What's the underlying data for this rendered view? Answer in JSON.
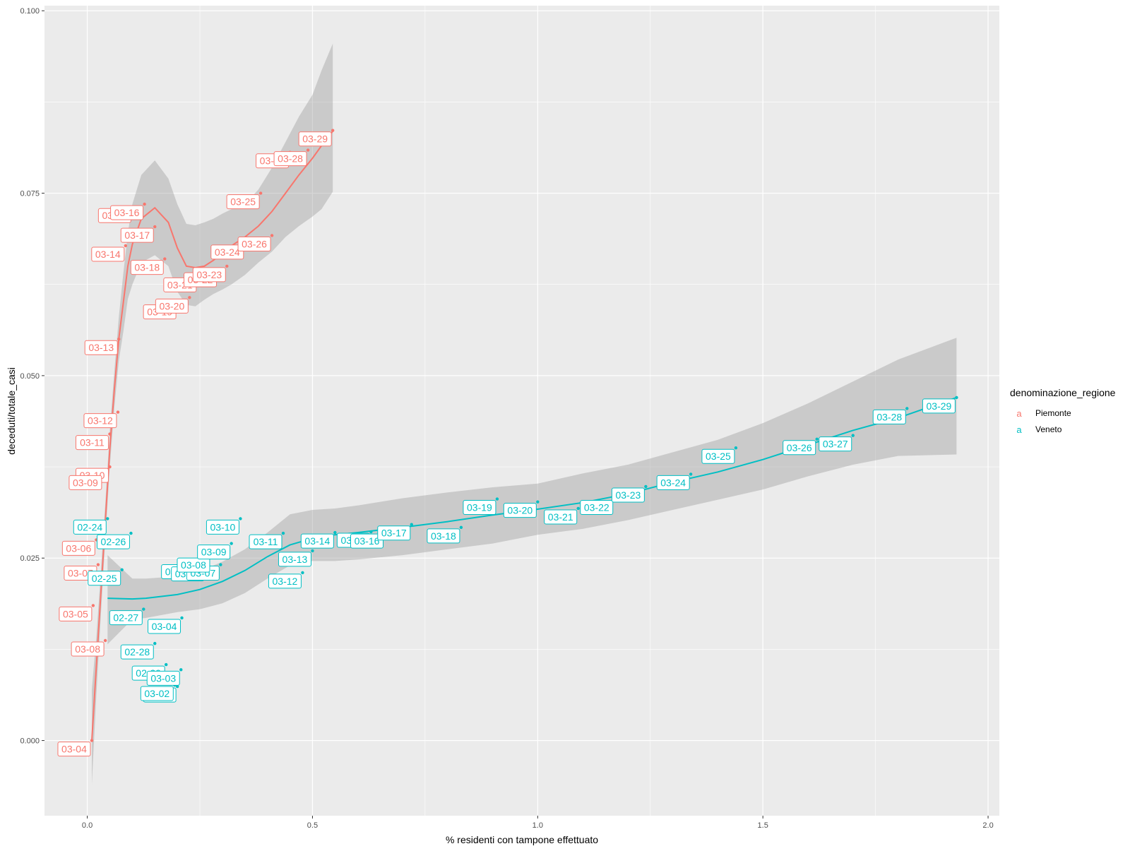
{
  "chart_data": {
    "type": "scatter",
    "title": "",
    "xlabel": "% residenti con tampone effettuato",
    "ylabel": "deceduti/totale_casi",
    "xlim": [
      -0.095,
      2.025
    ],
    "ylim": [
      -0.0103,
      0.1007
    ],
    "x_ticks": [
      0.0,
      0.5,
      1.0,
      1.5,
      2.0
    ],
    "x_tick_labels": [
      "0.0",
      "0.5",
      "1.0",
      "1.5",
      "2.0"
    ],
    "y_ticks": [
      0.0,
      0.025,
      0.05,
      0.075,
      0.1
    ],
    "y_tick_labels": [
      "0.000",
      "0.025",
      "0.050",
      "0.075",
      "0.100"
    ],
    "grid": true,
    "background": "#ebebeb",
    "legend": {
      "title": "denominazione_regione",
      "position": "right",
      "glyph": "a",
      "entries": [
        "Piemonte",
        "Veneto"
      ]
    },
    "series": [
      {
        "name": "Piemonte",
        "color": "#f8766d",
        "points": [
          {
            "x": 0.01,
            "y": 0.0,
            "label": "03-04"
          },
          {
            "x": 0.04,
            "y": 0.0137,
            "label": "03-08"
          },
          {
            "x": 0.013,
            "y": 0.0185,
            "label": "03-05"
          },
          {
            "x": 0.024,
            "y": 0.0241,
            "label": "03-07"
          },
          {
            "x": 0.02,
            "y": 0.0275,
            "label": "03-06"
          },
          {
            "x": 0.05,
            "y": 0.0375,
            "label": "03-10"
          },
          {
            "x": 0.035,
            "y": 0.0365,
            "label": "03-09"
          },
          {
            "x": 0.05,
            "y": 0.042,
            "label": "03-11"
          },
          {
            "x": 0.068,
            "y": 0.045,
            "label": "03-12"
          },
          {
            "x": 0.07,
            "y": 0.055,
            "label": "03-13"
          },
          {
            "x": 0.085,
            "y": 0.0678,
            "label": "03-14"
          },
          {
            "x": 0.1,
            "y": 0.0731,
            "label": "03-15"
          },
          {
            "x": 0.127,
            "y": 0.0735,
            "label": "03-16"
          },
          {
            "x": 0.15,
            "y": 0.0704,
            "label": "03-17"
          },
          {
            "x": 0.172,
            "y": 0.066,
            "label": "03-18"
          },
          {
            "x": 0.2,
            "y": 0.0599,
            "label": "03-19"
          },
          {
            "x": 0.227,
            "y": 0.0607,
            "label": "03-20"
          },
          {
            "x": 0.245,
            "y": 0.0636,
            "label": "03-21"
          },
          {
            "x": 0.29,
            "y": 0.0643,
            "label": "03-22"
          },
          {
            "x": 0.31,
            "y": 0.065,
            "label": "03-23"
          },
          {
            "x": 0.35,
            "y": 0.0681,
            "label": "03-24"
          },
          {
            "x": 0.385,
            "y": 0.075,
            "label": "03-25"
          },
          {
            "x": 0.41,
            "y": 0.0692,
            "label": "03-26"
          },
          {
            "x": 0.45,
            "y": 0.0806,
            "label": "03-27"
          },
          {
            "x": 0.49,
            "y": 0.0809,
            "label": "03-28"
          },
          {
            "x": 0.545,
            "y": 0.0836,
            "label": "03-29"
          }
        ]
      },
      {
        "name": "Veneto",
        "color": "#00bfc4",
        "points": [
          {
            "x": 0.045,
            "y": 0.0304,
            "label": "02-24"
          },
          {
            "x": 0.077,
            "y": 0.0234,
            "label": "02-25"
          },
          {
            "x": 0.097,
            "y": 0.0284,
            "label": "02-26"
          },
          {
            "x": 0.125,
            "y": 0.018,
            "label": "02-27"
          },
          {
            "x": 0.15,
            "y": 0.0133,
            "label": "02-28"
          },
          {
            "x": 0.175,
            "y": 0.0104,
            "label": "02-29"
          },
          {
            "x": 0.2,
            "y": 0.0074,
            "label": "03-01"
          },
          {
            "x": 0.194,
            "y": 0.0076,
            "label": "03-02"
          },
          {
            "x": 0.208,
            "y": 0.0097,
            "label": "03-03"
          },
          {
            "x": 0.21,
            "y": 0.0168,
            "label": "03-04"
          },
          {
            "x": 0.24,
            "y": 0.0243,
            "label": "03-05"
          },
          {
            "x": 0.262,
            "y": 0.024,
            "label": "03-06"
          },
          {
            "x": 0.296,
            "y": 0.0241,
            "label": "03-07"
          },
          {
            "x": 0.275,
            "y": 0.0252,
            "label": "03-08"
          },
          {
            "x": 0.32,
            "y": 0.027,
            "label": "03-09"
          },
          {
            "x": 0.34,
            "y": 0.0304,
            "label": "03-10"
          },
          {
            "x": 0.435,
            "y": 0.0284,
            "label": "03-11"
          },
          {
            "x": 0.478,
            "y": 0.023,
            "label": "03-12"
          },
          {
            "x": 0.5,
            "y": 0.026,
            "label": "03-13"
          },
          {
            "x": 0.55,
            "y": 0.0285,
            "label": "03-14"
          },
          {
            "x": 0.63,
            "y": 0.0286,
            "label": "03-15"
          },
          {
            "x": 0.66,
            "y": 0.0285,
            "label": "03-16"
          },
          {
            "x": 0.72,
            "y": 0.0296,
            "label": "03-17"
          },
          {
            "x": 0.83,
            "y": 0.0292,
            "label": "03-18"
          },
          {
            "x": 0.91,
            "y": 0.0331,
            "label": "03-19"
          },
          {
            "x": 1.0,
            "y": 0.0327,
            "label": "03-20"
          },
          {
            "x": 1.09,
            "y": 0.0318,
            "label": "03-21"
          },
          {
            "x": 1.17,
            "y": 0.0331,
            "label": "03-22"
          },
          {
            "x": 1.24,
            "y": 0.0348,
            "label": "03-23"
          },
          {
            "x": 1.34,
            "y": 0.0365,
            "label": "03-24"
          },
          {
            "x": 1.44,
            "y": 0.0401,
            "label": "03-25"
          },
          {
            "x": 1.62,
            "y": 0.0413,
            "label": "03-26"
          },
          {
            "x": 1.7,
            "y": 0.0418,
            "label": "03-27"
          },
          {
            "x": 1.82,
            "y": 0.0455,
            "label": "03-28"
          },
          {
            "x": 1.93,
            "y": 0.047,
            "label": "03-29"
          }
        ]
      }
    ],
    "smooth": [
      {
        "series": "Piemonte",
        "x": [
          0.01,
          0.02,
          0.03,
          0.04,
          0.05,
          0.06,
          0.07,
          0.08,
          0.09,
          0.1,
          0.12,
          0.15,
          0.18,
          0.2,
          0.22,
          0.24,
          0.26,
          0.28,
          0.3,
          0.32,
          0.35,
          0.38,
          0.41,
          0.44,
          0.47,
          0.5,
          0.52,
          0.545
        ],
        "y": [
          0.0,
          0.01,
          0.02,
          0.03,
          0.04,
          0.048,
          0.055,
          0.06,
          0.065,
          0.068,
          0.0715,
          0.073,
          0.071,
          0.0675,
          0.065,
          0.0648,
          0.065,
          0.0658,
          0.0668,
          0.0678,
          0.069,
          0.0705,
          0.0725,
          0.075,
          0.0775,
          0.0798,
          0.0815,
          0.0835
        ],
        "upper": [
          0.007,
          0.014,
          0.023,
          0.0325,
          0.0425,
          0.0505,
          0.058,
          0.064,
          0.0695,
          0.0735,
          0.0775,
          0.0795,
          0.077,
          0.0735,
          0.0708,
          0.0706,
          0.071,
          0.0715,
          0.0722,
          0.0728,
          0.0735,
          0.0755,
          0.0785,
          0.082,
          0.0855,
          0.0885,
          0.0918,
          0.0955
        ],
        "lower": [
          -0.006,
          0.006,
          0.017,
          0.0275,
          0.0375,
          0.0455,
          0.052,
          0.056,
          0.0605,
          0.0625,
          0.0655,
          0.0665,
          0.065,
          0.0615,
          0.0597,
          0.0595,
          0.0604,
          0.0612,
          0.0618,
          0.0625,
          0.0638,
          0.0655,
          0.067,
          0.069,
          0.0705,
          0.0718,
          0.0728,
          0.0752
        ]
      },
      {
        "series": "Veneto",
        "x": [
          0.045,
          0.1,
          0.13,
          0.2,
          0.25,
          0.3,
          0.35,
          0.4,
          0.45,
          0.5,
          0.55,
          0.6,
          0.7,
          0.8,
          0.9,
          1.0,
          1.1,
          1.2,
          1.3,
          1.4,
          1.5,
          1.6,
          1.7,
          1.8,
          1.93
        ],
        "y": [
          0.0195,
          0.0194,
          0.0195,
          0.02,
          0.0207,
          0.0218,
          0.0233,
          0.0252,
          0.0268,
          0.0277,
          0.0282,
          0.0285,
          0.0292,
          0.03,
          0.0309,
          0.0317,
          0.0326,
          0.0338,
          0.0354,
          0.0368,
          0.0385,
          0.0405,
          0.0425,
          0.0442,
          0.047
        ],
        "upper": [
          0.0254,
          0.0222,
          0.0222,
          0.0225,
          0.0232,
          0.0245,
          0.0262,
          0.0285,
          0.031,
          0.0316,
          0.0318,
          0.0322,
          0.0332,
          0.034,
          0.0347,
          0.0352,
          0.0366,
          0.0378,
          0.0395,
          0.0412,
          0.0435,
          0.0462,
          0.0492,
          0.0522,
          0.0552
        ],
        "lower": [
          0.0132,
          0.0166,
          0.0168,
          0.0176,
          0.018,
          0.0188,
          0.0202,
          0.0222,
          0.024,
          0.0246,
          0.0246,
          0.0248,
          0.0254,
          0.0262,
          0.027,
          0.0282,
          0.029,
          0.0302,
          0.0316,
          0.033,
          0.0344,
          0.0362,
          0.0378,
          0.039,
          0.0392
        ]
      }
    ]
  }
}
